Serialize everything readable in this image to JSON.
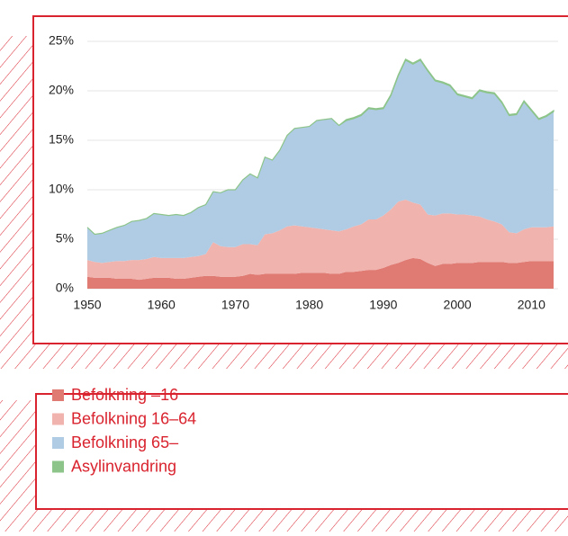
{
  "chart_data": {
    "type": "stacked_area",
    "x": [
      1950,
      1951,
      1952,
      1953,
      1954,
      1955,
      1956,
      1957,
      1958,
      1959,
      1960,
      1961,
      1962,
      1963,
      1964,
      1965,
      1966,
      1967,
      1968,
      1969,
      1970,
      1971,
      1972,
      1973,
      1974,
      1975,
      1976,
      1977,
      1978,
      1979,
      1980,
      1981,
      1982,
      1983,
      1984,
      1985,
      1986,
      1987,
      1988,
      1989,
      1990,
      1991,
      1992,
      1993,
      1994,
      1995,
      1996,
      1997,
      1998,
      1999,
      2000,
      2001,
      2002,
      2003,
      2004,
      2005,
      2006,
      2007,
      2008,
      2009,
      2010,
      2011,
      2012,
      2013
    ],
    "series": [
      {
        "name": "Befolkning –16",
        "color": "#e07b73",
        "values": [
          1.2,
          1.1,
          1.1,
          1.1,
          1.0,
          1.0,
          1.0,
          0.9,
          1.0,
          1.1,
          1.1,
          1.1,
          1.0,
          1.0,
          1.1,
          1.2,
          1.3,
          1.3,
          1.2,
          1.2,
          1.2,
          1.3,
          1.5,
          1.4,
          1.5,
          1.5,
          1.5,
          1.5,
          1.5,
          1.6,
          1.6,
          1.6,
          1.6,
          1.5,
          1.5,
          1.7,
          1.7,
          1.8,
          1.9,
          1.9,
          2.1,
          2.4,
          2.6,
          2.9,
          3.1,
          3.0,
          2.6,
          2.3,
          2.5,
          2.5,
          2.6,
          2.6,
          2.6,
          2.7,
          2.7,
          2.7,
          2.7,
          2.6,
          2.6,
          2.7,
          2.8,
          2.8,
          2.8,
          2.8
        ]
      },
      {
        "name": "Befolkning 16–64",
        "color": "#f0b3ae",
        "values": [
          1.7,
          1.6,
          1.5,
          1.6,
          1.8,
          1.8,
          1.9,
          2.0,
          2.0,
          2.1,
          2.0,
          2.0,
          2.1,
          2.1,
          2.1,
          2.1,
          2.2,
          3.4,
          3.1,
          3.0,
          3.0,
          3.2,
          3.0,
          3.0,
          4.0,
          4.1,
          4.4,
          4.8,
          4.9,
          4.7,
          4.6,
          4.5,
          4.4,
          4.4,
          4.3,
          4.3,
          4.6,
          4.7,
          5.1,
          5.1,
          5.3,
          5.6,
          6.2,
          6.1,
          5.6,
          5.5,
          4.9,
          5.1,
          5.1,
          5.1,
          4.9,
          4.9,
          4.8,
          4.6,
          4.3,
          4.1,
          3.8,
          3.1,
          3.0,
          3.3,
          3.4,
          3.4,
          3.4,
          3.5
        ]
      },
      {
        "name": "Befolkning 65–",
        "color": "#b0cce4",
        "values": [
          3.3,
          2.8,
          3.0,
          3.2,
          3.4,
          3.6,
          3.9,
          4.0,
          4.1,
          4.4,
          4.4,
          4.3,
          4.4,
          4.3,
          4.5,
          4.9,
          5.0,
          5.1,
          5.4,
          5.8,
          5.8,
          6.5,
          7.1,
          6.8,
          7.8,
          7.4,
          8.1,
          9.2,
          9.8,
          10.0,
          10.2,
          10.9,
          11.1,
          11.3,
          10.7,
          11.0,
          10.9,
          11.0,
          11.2,
          11.1,
          10.8,
          11.5,
          12.7,
          14.1,
          14.0,
          14.6,
          14.5,
          13.6,
          13.2,
          12.9,
          12.1,
          11.9,
          11.8,
          12.7,
          12.8,
          12.9,
          12.3,
          11.8,
          12.0,
          12.9,
          11.8,
          10.9,
          11.2,
          11.6
        ]
      },
      {
        "name": "Asylinvandring",
        "color": "#8cc48a",
        "values": [
          0,
          0,
          0,
          0,
          0,
          0,
          0,
          0,
          0,
          0,
          0,
          0,
          0,
          0,
          0,
          0,
          0,
          0,
          0,
          0,
          0,
          0,
          0,
          0,
          0,
          0,
          0,
          0,
          0,
          0,
          0,
          0,
          0,
          0,
          0,
          0.1,
          0.1,
          0.1,
          0.1,
          0.1,
          0.1,
          0.1,
          0.1,
          0.1,
          0.1,
          0.1,
          0.1,
          0.1,
          0.1,
          0.1,
          0.1,
          0.1,
          0.1,
          0.1,
          0.1,
          0.1,
          0.1,
          0.1,
          0.1,
          0.1,
          0.1,
          0.1,
          0.1,
          0.1
        ]
      }
    ],
    "xlim": [
      1950,
      2013
    ],
    "xticks": [
      1950,
      1960,
      1970,
      1980,
      1990,
      2000,
      2010
    ],
    "ylim": [
      0,
      25
    ],
    "yticks": [
      {
        "value": 0,
        "label": "0%"
      },
      {
        "value": 5,
        "label": "5%"
      },
      {
        "value": 10,
        "label": "10%"
      },
      {
        "value": 15,
        "label": "15%"
      },
      {
        "value": 20,
        "label": "20%"
      },
      {
        "value": 25,
        "label": "25%"
      }
    ],
    "grid": true
  }
}
